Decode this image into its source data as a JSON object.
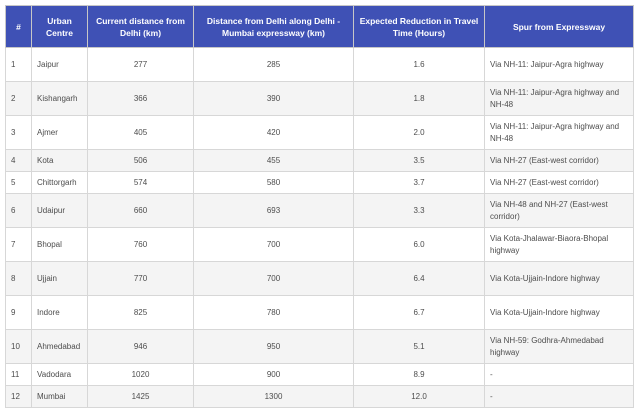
{
  "table": {
    "headers": {
      "num": "#",
      "centre": "Urban Centre",
      "current": "Current distance from Delhi (km)",
      "along": "Distance from Delhi along Delhi - Mumbai expressway (km)",
      "reduction": "Expected Reduction in Travel Time (Hours)",
      "spur": "Spur from Expressway"
    },
    "rows": [
      {
        "num": "1",
        "centre": "Jaipur",
        "current": "277",
        "along": "285",
        "reduction": "1.6",
        "spur": "Via NH-11: Jaipur-Agra highway"
      },
      {
        "num": "2",
        "centre": "Kishangarh",
        "current": "366",
        "along": "390",
        "reduction": "1.8",
        "spur": "Via NH-11: Jaipur-Agra highway and NH-48"
      },
      {
        "num": "3",
        "centre": "Ajmer",
        "current": "405",
        "along": "420",
        "reduction": "2.0",
        "spur": "Via NH-11: Jaipur-Agra highway and NH-48"
      },
      {
        "num": "4",
        "centre": "Kota",
        "current": "506",
        "along": "455",
        "reduction": "3.5",
        "spur": "Via NH-27 (East-west corridor)"
      },
      {
        "num": "5",
        "centre": "Chittorgarh",
        "current": "574",
        "along": "580",
        "reduction": "3.7",
        "spur": "Via NH-27 (East-west corridor)"
      },
      {
        "num": "6",
        "centre": "Udaipur",
        "current": "660",
        "along": "693",
        "reduction": "3.3",
        "spur": "Via NH-48 and NH-27 (East-west corridor)"
      },
      {
        "num": "7",
        "centre": "Bhopal",
        "current": "760",
        "along": "700",
        "reduction": "6.0",
        "spur": "Via Kota-Jhalawar-Biaora-Bhopal highway"
      },
      {
        "num": "8",
        "centre": "Ujjain",
        "current": "770",
        "along": "700",
        "reduction": "6.4",
        "spur": "Via Kota-Ujjain-Indore highway"
      },
      {
        "num": "9",
        "centre": "Indore",
        "current": "825",
        "along": "780",
        "reduction": "6.7",
        "spur": "Via Kota-Ujjain-Indore highway"
      },
      {
        "num": "10",
        "centre": "Ahmedabad",
        "current": "946",
        "along": "950",
        "reduction": "5.1",
        "spur": "Via NH-59: Godhra-Ahmedabad highway"
      },
      {
        "num": "11",
        "centre": "Vadodara",
        "current": "1020",
        "along": "900",
        "reduction": "8.9",
        "spur": "-"
      },
      {
        "num": "12",
        "centre": "Mumbai",
        "current": "1425",
        "along": "1300",
        "reduction": "12.0",
        "spur": "-"
      }
    ]
  },
  "colors": {
    "header_bg": "#3f51b5",
    "header_text": "#ffffff",
    "row_alt_bg": "#f4f4f4",
    "border": "#d7d7d7"
  }
}
